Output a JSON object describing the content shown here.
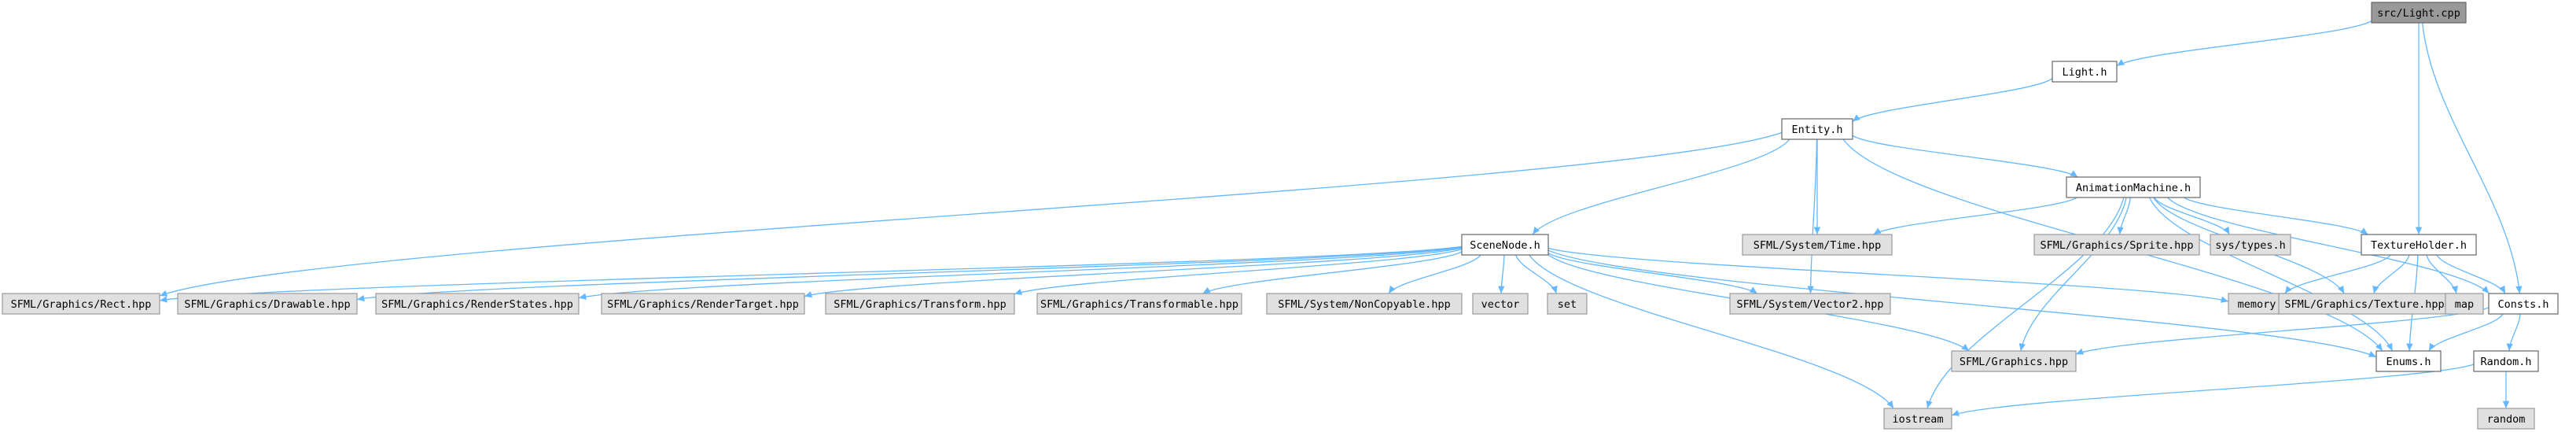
{
  "graph": {
    "colors": {
      "edge": "#63b8ff",
      "node_root_fill": "#999999",
      "node_project_fill": "#ffffff",
      "node_external_fill": "#e0e0e0",
      "node_border": "#666666",
      "node_external_border": "#999999",
      "text": "#000000"
    },
    "nodes": [
      {
        "id": "src/Light.cpp",
        "label": "src/Light.cpp",
        "kind": "root"
      },
      {
        "id": "Light.h",
        "label": "Light.h",
        "kind": "project"
      },
      {
        "id": "Entity.h",
        "label": "Entity.h",
        "kind": "project"
      },
      {
        "id": "AnimationMachine.h",
        "label": "AnimationMachine.h",
        "kind": "project"
      },
      {
        "id": "SceneNode.h",
        "label": "SceneNode.h",
        "kind": "project"
      },
      {
        "id": "TextureHolder.h",
        "label": "TextureHolder.h",
        "kind": "project"
      },
      {
        "id": "Consts.h",
        "label": "Consts.h",
        "kind": "project"
      },
      {
        "id": "Enums.h",
        "label": "Enums.h",
        "kind": "project"
      },
      {
        "id": "Random.h",
        "label": "Random.h",
        "kind": "project"
      },
      {
        "id": "SFML/Graphics/Rect.hpp",
        "label": "SFML/Graphics/Rect.hpp",
        "kind": "external"
      },
      {
        "id": "SFML/Graphics/Drawable.hpp",
        "label": "SFML/Graphics/Drawable.hpp",
        "kind": "external"
      },
      {
        "id": "SFML/Graphics/RenderStates.hpp",
        "label": "SFML/Graphics/RenderStates.hpp",
        "kind": "external"
      },
      {
        "id": "SFML/Graphics/RenderTarget.hpp",
        "label": "SFML/Graphics/RenderTarget.hpp",
        "kind": "external"
      },
      {
        "id": "SFML/Graphics/Transform.hpp",
        "label": "SFML/Graphics/Transform.hpp",
        "kind": "external"
      },
      {
        "id": "SFML/Graphics/Transformable.hpp",
        "label": "SFML/Graphics/Transformable.hpp",
        "kind": "external"
      },
      {
        "id": "SFML/System/NonCopyable.hpp",
        "label": "SFML/System/NonCopyable.hpp",
        "kind": "external"
      },
      {
        "id": "vector",
        "label": "vector",
        "kind": "external"
      },
      {
        "id": "set",
        "label": "set",
        "kind": "external"
      },
      {
        "id": "SFML/System/Vector2.hpp",
        "label": "SFML/System/Vector2.hpp",
        "kind": "external"
      },
      {
        "id": "SFML/System/Time.hpp",
        "label": "SFML/System/Time.hpp",
        "kind": "external"
      },
      {
        "id": "SFML/Graphics/Sprite.hpp",
        "label": "SFML/Graphics/Sprite.hpp",
        "kind": "external"
      },
      {
        "id": "sys/types.h",
        "label": "sys/types.h",
        "kind": "external"
      },
      {
        "id": "memory",
        "label": "memory",
        "kind": "external"
      },
      {
        "id": "SFML/Graphics/Texture.hpp",
        "label": "SFML/Graphics/Texture.hpp",
        "kind": "external"
      },
      {
        "id": "map",
        "label": "map",
        "kind": "external"
      },
      {
        "id": "SFML/Graphics.hpp",
        "label": "SFML/Graphics.hpp",
        "kind": "external"
      },
      {
        "id": "iostream",
        "label": "iostream",
        "kind": "external"
      },
      {
        "id": "random",
        "label": "random",
        "kind": "external"
      }
    ],
    "edges": [
      [
        "src/Light.cpp",
        "Light.h"
      ],
      [
        "src/Light.cpp",
        "TextureHolder.h"
      ],
      [
        "src/Light.cpp",
        "Consts.h"
      ],
      [
        "Light.h",
        "Entity.h"
      ],
      [
        "Entity.h",
        "SFML/Graphics/Rect.hpp"
      ],
      [
        "Entity.h",
        "SceneNode.h"
      ],
      [
        "Entity.h",
        "SFML/System/Vector2.hpp"
      ],
      [
        "Entity.h",
        "SFML/System/Time.hpp"
      ],
      [
        "Entity.h",
        "AnimationMachine.h"
      ],
      [
        "Entity.h",
        "Enums.h"
      ],
      [
        "AnimationMachine.h",
        "SFML/System/Time.hpp"
      ],
      [
        "AnimationMachine.h",
        "SFML/Graphics/Sprite.hpp"
      ],
      [
        "AnimationMachine.h",
        "sys/types.h"
      ],
      [
        "AnimationMachine.h",
        "TextureHolder.h"
      ],
      [
        "AnimationMachine.h",
        "SFML/Graphics/Texture.hpp"
      ],
      [
        "AnimationMachine.h",
        "Consts.h"
      ],
      [
        "AnimationMachine.h",
        "SFML/Graphics.hpp"
      ],
      [
        "AnimationMachine.h",
        "iostream"
      ],
      [
        "AnimationMachine.h",
        "Enums.h"
      ],
      [
        "SceneNode.h",
        "SFML/Graphics/Rect.hpp"
      ],
      [
        "SceneNode.h",
        "SFML/Graphics/Drawable.hpp"
      ],
      [
        "SceneNode.h",
        "SFML/Graphics/RenderStates.hpp"
      ],
      [
        "SceneNode.h",
        "SFML/Graphics/RenderTarget.hpp"
      ],
      [
        "SceneNode.h",
        "SFML/Graphics/Transform.hpp"
      ],
      [
        "SceneNode.h",
        "SFML/Graphics/Transformable.hpp"
      ],
      [
        "SceneNode.h",
        "SFML/System/NonCopyable.hpp"
      ],
      [
        "SceneNode.h",
        "vector"
      ],
      [
        "SceneNode.h",
        "set"
      ],
      [
        "SceneNode.h",
        "SFML/System/Vector2.hpp"
      ],
      [
        "SceneNode.h",
        "memory"
      ],
      [
        "SceneNode.h",
        "SFML/Graphics.hpp"
      ],
      [
        "SceneNode.h",
        "Enums.h"
      ],
      [
        "SceneNode.h",
        "iostream"
      ],
      [
        "TextureHolder.h",
        "memory"
      ],
      [
        "TextureHolder.h",
        "SFML/Graphics/Texture.hpp"
      ],
      [
        "TextureHolder.h",
        "map"
      ],
      [
        "TextureHolder.h",
        "Consts.h"
      ],
      [
        "TextureHolder.h",
        "Enums.h"
      ],
      [
        "Consts.h",
        "SFML/Graphics.hpp"
      ],
      [
        "Consts.h",
        "Enums.h"
      ],
      [
        "Consts.h",
        "Random.h"
      ],
      [
        "Random.h",
        "iostream"
      ],
      [
        "Random.h",
        "random"
      ]
    ]
  }
}
